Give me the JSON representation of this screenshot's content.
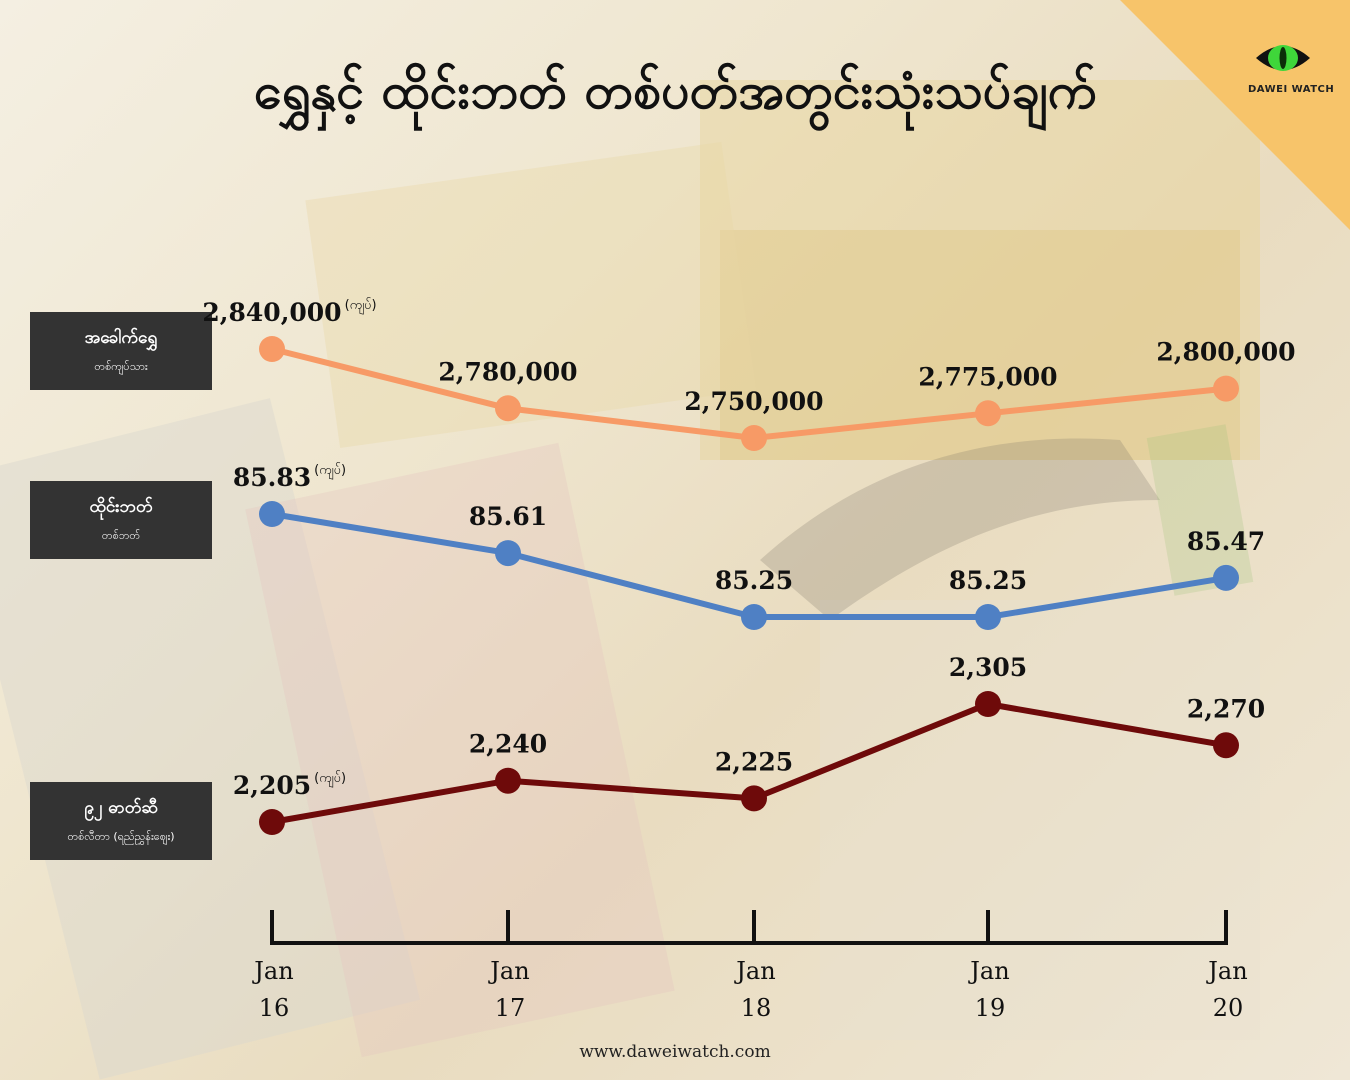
{
  "title": "ရွှေနှင့် ထိုင်းဘတ် တစ်ပတ်အတွင်းသုံးသပ်ချက်",
  "logo": {
    "text": "DAWEI WATCH",
    "icon": "eye-icon",
    "accent": "#3fd63a"
  },
  "footer": "www.daweiwatch.com",
  "labels": [
    {
      "main": "အခေါက်ရွှေ",
      "sub": "တစ်ကျပ်သား"
    },
    {
      "main": "ထိုင်းဘတ်",
      "sub": "တစ်ဘတ်"
    },
    {
      "main": "၉၂ ဓာတ်ဆီ",
      "sub": "တစ်လီတာ (ရည်ညွှန်းဈေး)"
    }
  ],
  "chart_data": {
    "type": "line",
    "categories": [
      [
        "Jan",
        "16"
      ],
      [
        "Jan",
        "17"
      ],
      [
        "Jan",
        "18"
      ],
      [
        "Jan",
        "19"
      ],
      [
        "Jan",
        "20"
      ]
    ],
    "unit_note": "(ကျပ်)",
    "series": [
      {
        "values": [
          2840000,
          2780000,
          2750000,
          2775000,
          2800000
        ],
        "labels": [
          "2,840,000",
          "2,780,000",
          "2,750,000",
          "2,775,000",
          "2,800,000"
        ],
        "color": "#f79a66"
      },
      {
        "values": [
          85.83,
          85.61,
          85.25,
          85.25,
          85.47
        ],
        "labels": [
          "85.83",
          "85.61",
          "85.25",
          "85.25",
          "85.47"
        ],
        "color": "#4f80c4"
      },
      {
        "values": [
          2205,
          2240,
          2225,
          2305,
          2270
        ],
        "labels": [
          "2,205",
          "2,240",
          "2,225",
          "2,305",
          "2,270"
        ],
        "color": "#6e0a0a"
      }
    ]
  }
}
